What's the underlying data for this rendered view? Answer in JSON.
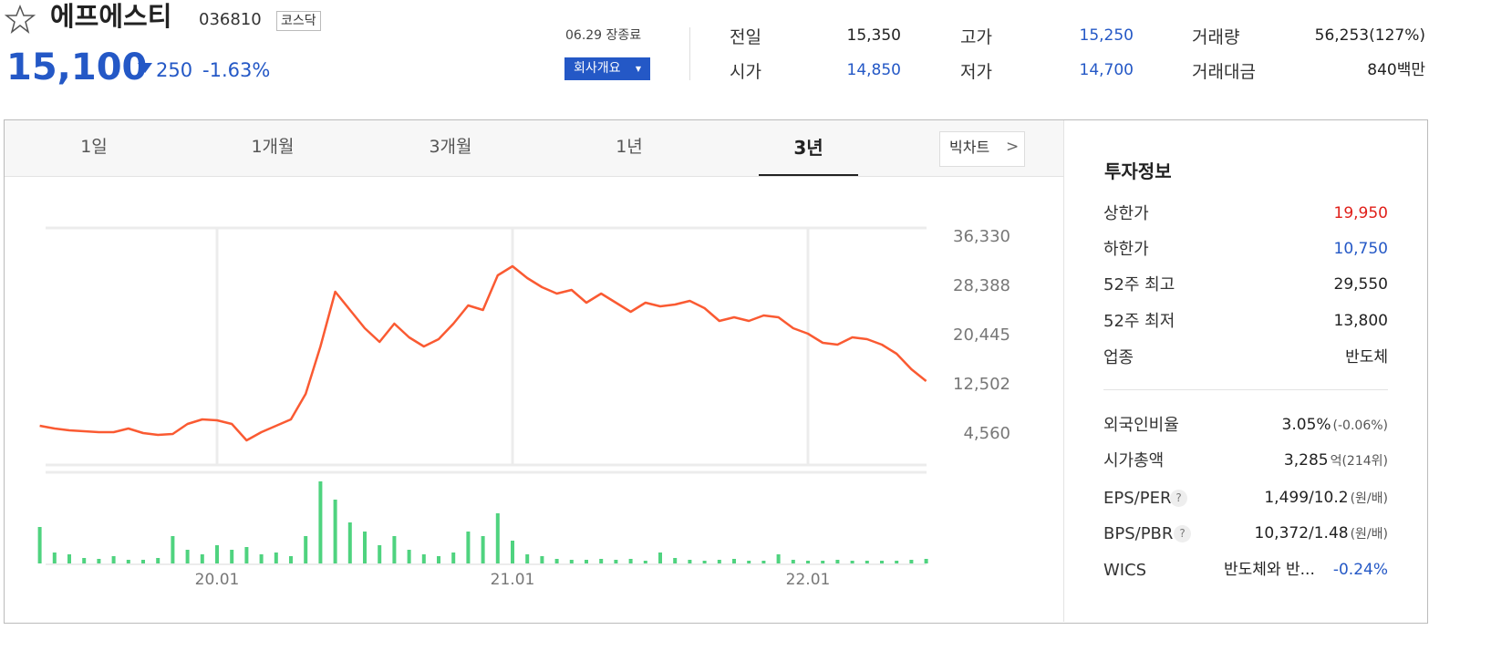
{
  "header": {
    "name": "에프에스티",
    "code": "036810",
    "market": "코스닥",
    "price": "15,100",
    "change": "250",
    "change_rate": "-1.63%",
    "date_status": "06.29 장종료",
    "company_button": "회사개요"
  },
  "quote": [
    {
      "label": "전일",
      "value": "15,350"
    },
    {
      "label": "시가",
      "value": "14,850"
    },
    {
      "label": "고가",
      "value": "15,250"
    },
    {
      "label": "저가",
      "value": "14,700"
    },
    {
      "label": "거래량",
      "value": "56,253(127%)"
    },
    {
      "label": "거래대금",
      "value": "840백만"
    }
  ],
  "tabs": [
    "1일",
    "1개월",
    "3개월",
    "1년",
    "3년"
  ],
  "big_chart": "빅차트",
  "chart_data": {
    "type": "line",
    "color": "#fa5a32",
    "categories": [
      null,
      null,
      null,
      null,
      null,
      null,
      null,
      null,
      null,
      null,
      null,
      null,
      "20.01",
      null,
      null,
      null,
      null,
      null,
      null,
      null,
      null,
      null,
      null,
      null,
      null,
      null,
      null,
      null,
      null,
      null,
      null,
      null,
      "21.01",
      null,
      null,
      null,
      null,
      null,
      null,
      null,
      null,
      null,
      null,
      null,
      null,
      null,
      null,
      null,
      null,
      null,
      null,
      null,
      "22.01",
      null,
      null,
      null,
      null,
      null,
      null,
      null,
      null
    ],
    "values": [
      5737,
      5290,
      5000,
      4850,
      4710,
      4710,
      5290,
      4560,
      4270,
      4410,
      6030,
      6770,
      6620,
      6030,
      3380,
      4710,
      5740,
      6770,
      10880,
      18530,
      27360,
      24420,
      21480,
      19270,
      22210,
      20000,
      18530,
      19710,
      22210,
      25150,
      24420,
      30000,
      31480,
      29560,
      28090,
      27060,
      27650,
      25590,
      27060,
      25590,
      24120,
      25590,
      25010,
      25300,
      25890,
      24710,
      22650,
      23240,
      22650,
      23530,
      23240,
      21480,
      20590,
      19120,
      18830,
      20000,
      19710,
      18830,
      17360,
      14860,
      12950
    ],
    "ylim": [
      -588,
      37654
    ],
    "yticks": [
      {
        "value": 36330,
        "label": "36,330"
      },
      {
        "value": 28388,
        "label": "28,388"
      },
      {
        "value": 20445,
        "label": "20,445"
      },
      {
        "value": 12502,
        "label": "12,502"
      },
      {
        "value": 4560,
        "label": "4,560"
      }
    ],
    "grid": true,
    "volume": {
      "color": "#4fd37f",
      "ylim": [
        0,
        100
      ],
      "values": [
        40,
        12,
        10,
        6,
        5,
        8,
        4,
        4,
        6,
        30,
        15,
        10,
        20,
        15,
        18,
        10,
        12,
        8,
        30,
        90,
        70,
        45,
        35,
        20,
        30,
        15,
        10,
        8,
        12,
        35,
        30,
        55,
        25,
        10,
        8,
        5,
        4,
        4,
        5,
        4,
        5,
        3,
        12,
        6,
        4,
        3,
        4,
        5,
        3,
        3,
        10,
        4,
        3,
        3,
        4,
        3,
        3,
        3,
        3,
        4,
        5
      ]
    }
  },
  "invest": {
    "title": "투자정보",
    "rows": [
      {
        "label": "상한가",
        "value": "19,950"
      },
      {
        "label": "하한가",
        "value": "10,750"
      },
      {
        "label": "52주 최고",
        "value": "29,550"
      },
      {
        "label": "52주 최저",
        "value": "13,800"
      },
      {
        "label": "업종",
        "value": "반도체"
      }
    ],
    "rows2": [
      {
        "label": "외국인비율",
        "value": "3.05%",
        "sub": "(-0.06%)"
      },
      {
        "label": "시가총액",
        "value": "3,285",
        "sub": "억(214위)"
      },
      {
        "label": "EPS/PER",
        "help": "?",
        "value": "1,499/10.2",
        "sub": "(원/배)"
      },
      {
        "label": "BPS/PBR",
        "help": "?",
        "value": "10,372/1.48",
        "sub": "(원/배)"
      },
      {
        "label": "WICS",
        "value": "반도체와 반...",
        "sub": "-0.24%"
      }
    ]
  }
}
